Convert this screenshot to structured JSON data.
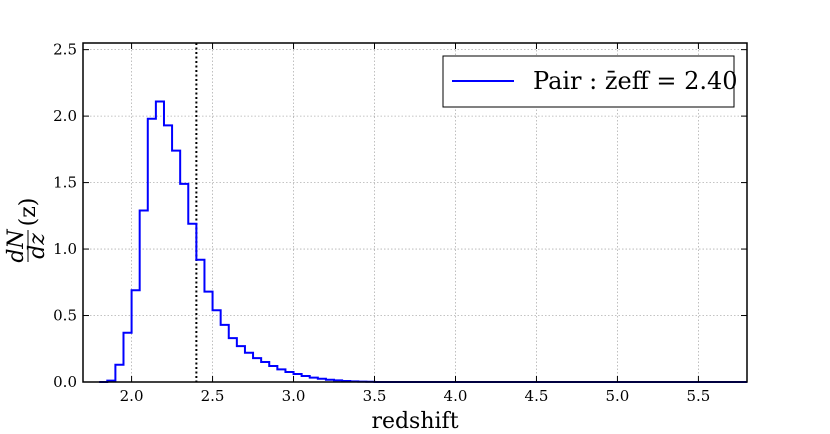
{
  "chart_data": {
    "type": "line",
    "step": true,
    "xlabel": "redshift",
    "ylabel": "dN/dz(z)",
    "xlim": [
      1.7,
      5.8
    ],
    "ylim": [
      0.0,
      2.55
    ],
    "xticks": [
      2.0,
      2.5,
      3.0,
      3.5,
      4.0,
      4.5,
      5.0,
      5.5
    ],
    "xtick_labels": [
      "2.0",
      "2.5",
      "3.0",
      "3.5",
      "4.0",
      "4.5",
      "5.0",
      "5.5"
    ],
    "yticks": [
      0.0,
      0.5,
      1.0,
      1.5,
      2.0,
      2.5
    ],
    "ytick_labels": [
      "0.0",
      "0.5",
      "1.0",
      "1.5",
      "2.0",
      "2.5"
    ],
    "grid": true,
    "legend_position": "top-right",
    "reference_line": {
      "x": 2.4,
      "style": "dotted",
      "color": "#000000"
    },
    "series": [
      {
        "name": "Pair : z̄eff = 2.40",
        "color": "#0000ff",
        "bin_edges": [
          1.8,
          1.85,
          1.9,
          1.95,
          2.0,
          2.05,
          2.1,
          2.15,
          2.2,
          2.25,
          2.3,
          2.35,
          2.4,
          2.45,
          2.5,
          2.55,
          2.6,
          2.65,
          2.7,
          2.75,
          2.8,
          2.85,
          2.9,
          2.95,
          3.0,
          3.05,
          3.1,
          3.15,
          3.2,
          3.25,
          3.3,
          3.35,
          3.4,
          3.45,
          3.5,
          5.8
        ],
        "values": [
          0.0,
          0.01,
          0.13,
          0.37,
          0.69,
          1.29,
          1.98,
          2.11,
          1.93,
          1.74,
          1.49,
          1.19,
          0.92,
          0.68,
          0.54,
          0.43,
          0.33,
          0.27,
          0.22,
          0.18,
          0.15,
          0.12,
          0.095,
          0.075,
          0.06,
          0.045,
          0.033,
          0.024,
          0.017,
          0.012,
          0.008,
          0.005,
          0.003,
          0.002,
          0.0
        ]
      }
    ]
  }
}
